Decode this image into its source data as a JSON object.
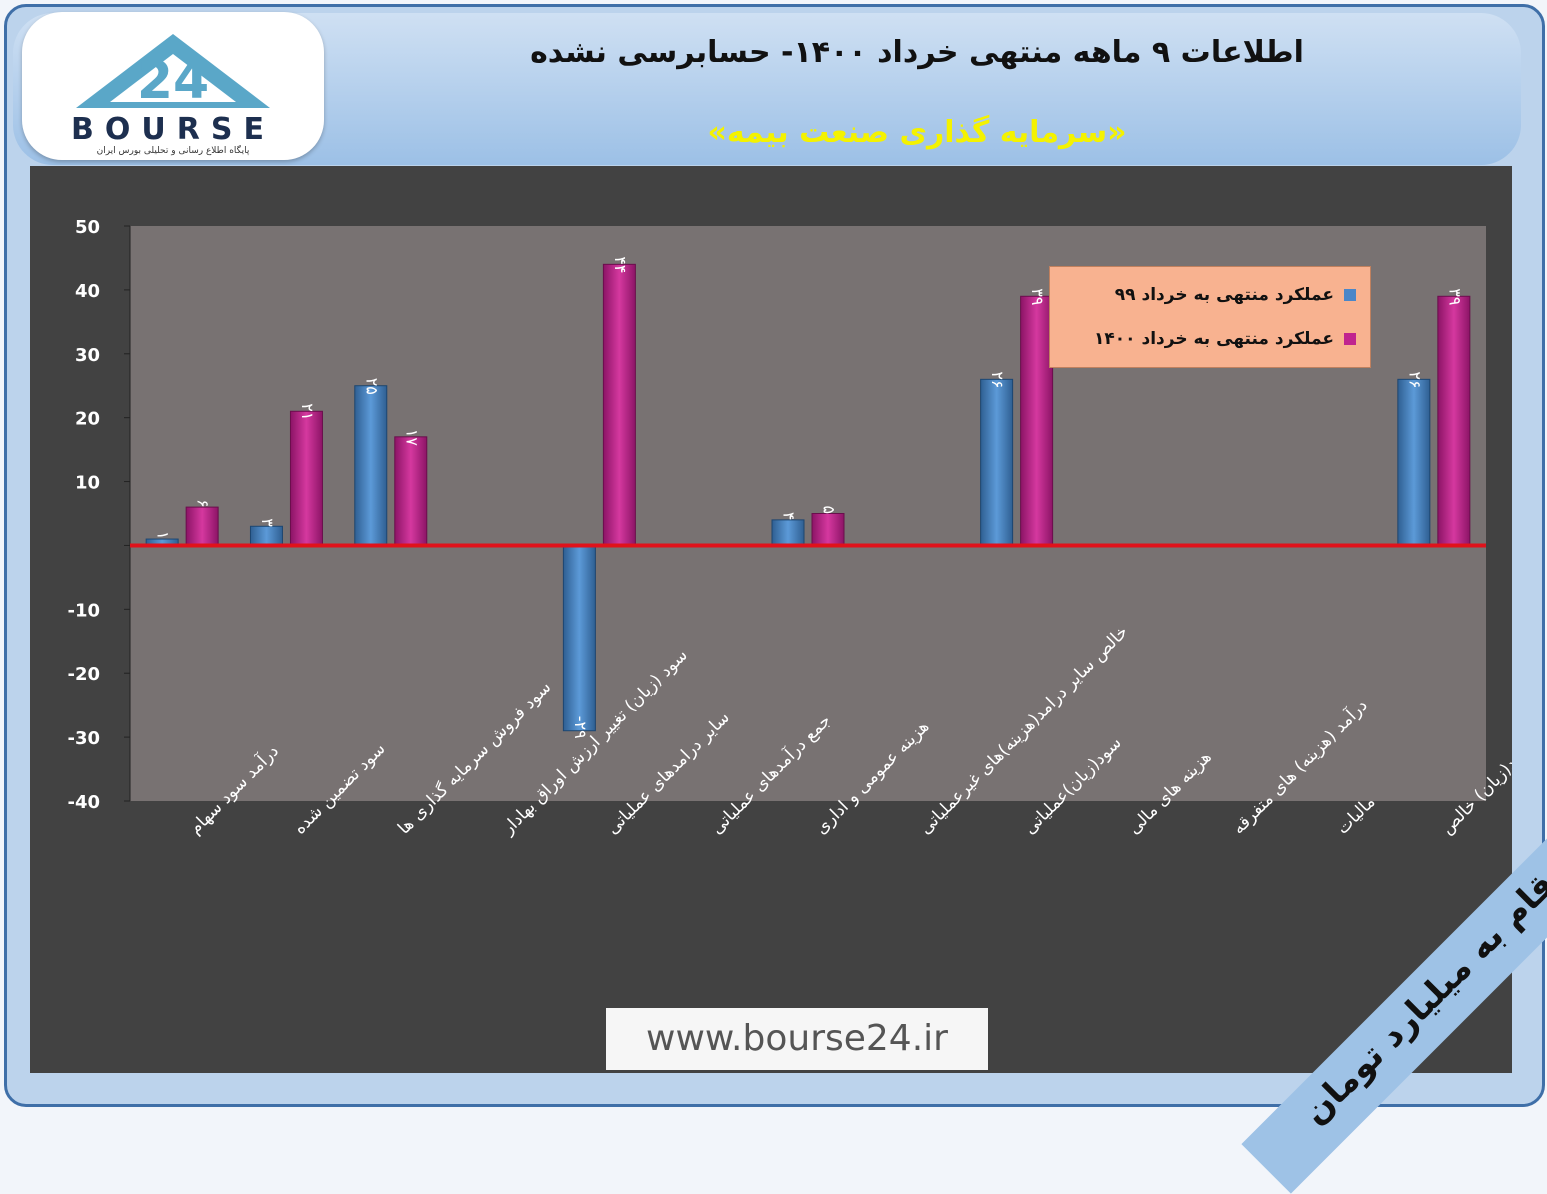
{
  "header": {
    "title": "اطلاعات ۹ ماهه منتهی خرداد ۱۴۰۰- حسابرسی نشده",
    "subtitle": "«سرمایه گذاری صنعت بیمه»"
  },
  "logo": {
    "number": "24",
    "word": "BOURSE",
    "tagline": "پایگاه اطلاع رسانی و تحلیلی بورس ایران"
  },
  "unit_note": "ارقام به میلیارد تومان",
  "url": "www.bourse24.ir",
  "colors": {
    "series1": "#4a86c8",
    "series2": "#c0248f",
    "zero_line": "#e0121b",
    "plot_bg": "#787272"
  },
  "chart_data": {
    "type": "bar",
    "categories": [
      "درآمد سود سهام",
      "سود تضمین شده",
      "سود فروش سرمایه گذاری ها",
      "سود (زیان) تغییر ارزش اوراق بهادار",
      "سایر درامدهای عملیاتی",
      "جمع درآمدهای عملیاتی",
      "هزینه عمومی و اداری",
      "خالص سایر درامد(هزینه)های غیرعملیاتی",
      "سود(زیان)عملیاتی",
      "هزینه های مالی",
      "درآمد (هزینه) های متفرقه",
      "مالیات",
      "سود(زیان) خالص"
    ],
    "series": [
      {
        "name": "عملکرد منتهی به خرداد ۹۹",
        "values": [
          1,
          3,
          25,
          null,
          -29,
          null,
          4,
          null,
          26,
          null,
          null,
          null,
          26
        ],
        "labels": [
          "۱",
          "۳",
          "۲۵",
          "",
          "-۲۹",
          "",
          "۴",
          "",
          "۲۶",
          "",
          "",
          "",
          "۲۶"
        ]
      },
      {
        "name": "عملکرد منتهی به خرداد ۱۴۰۰",
        "values": [
          6,
          21,
          17,
          null,
          44,
          null,
          5,
          null,
          39,
          null,
          null,
          null,
          39
        ],
        "labels": [
          "۶",
          "۲۱",
          "۱۷",
          "",
          "۴۴",
          "",
          "۵",
          "",
          "۳۹",
          "",
          "",
          "",
          "۳۹"
        ]
      }
    ],
    "yticks": [
      "50",
      "40",
      "30",
      "20",
      "10",
      "",
      "-10",
      "-20",
      "-30",
      "-40"
    ],
    "ylim": [
      -40,
      50
    ],
    "grid": false,
    "legend_position": "top-right"
  }
}
